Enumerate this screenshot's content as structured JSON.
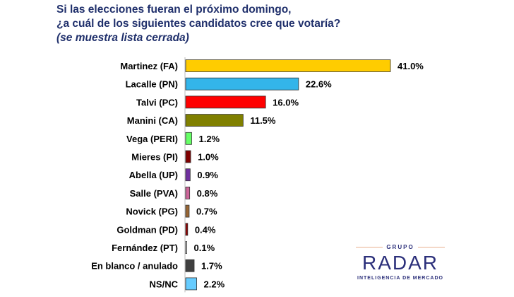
{
  "title": {
    "line1": "Si las elecciones fueran el próximo domingo,",
    "line2": "¿a cuál de los siguientes candidatos cree que votaría?",
    "line3": "(se muestra lista cerrada)"
  },
  "chart_data": {
    "type": "bar",
    "orientation": "horizontal",
    "categories": [
      "Martinez (FA)",
      "Lacalle (PN)",
      "Talvi (PC)",
      "Manini (CA)",
      "Vega (PERI)",
      "Mieres (PI)",
      "Abella (UP)",
      "Salle (PVA)",
      "Novick (PG)",
      "Goldman (PD)",
      "Fernández (PT)",
      "En blanco / anulado",
      "NS/NC"
    ],
    "values": [
      41.0,
      22.6,
      16.0,
      11.5,
      1.2,
      1.0,
      0.9,
      0.8,
      0.7,
      0.4,
      0.1,
      1.7,
      2.2
    ],
    "data_labels": [
      "41.0%",
      "22.6%",
      "16.0%",
      "11.5%",
      "1.2%",
      "1.0%",
      "0.9%",
      "0.8%",
      "0.7%",
      "0.4%",
      "0.1%",
      "1.7%",
      "2.2%"
    ],
    "colors": [
      "#FFCC00",
      "#33B5EA",
      "#FF0000",
      "#808000",
      "#66FF66",
      "#800000",
      "#7030A0",
      "#CC6699",
      "#996633",
      "#990000",
      "#FFFFFF",
      "#404040",
      "#66CCFF"
    ],
    "unit": "%",
    "grid": false,
    "legend": "none"
  },
  "logo": {
    "grupo": "GRUPO",
    "name": "RADAR",
    "tagline": "INTELIGENCIA DE MERCADO"
  }
}
